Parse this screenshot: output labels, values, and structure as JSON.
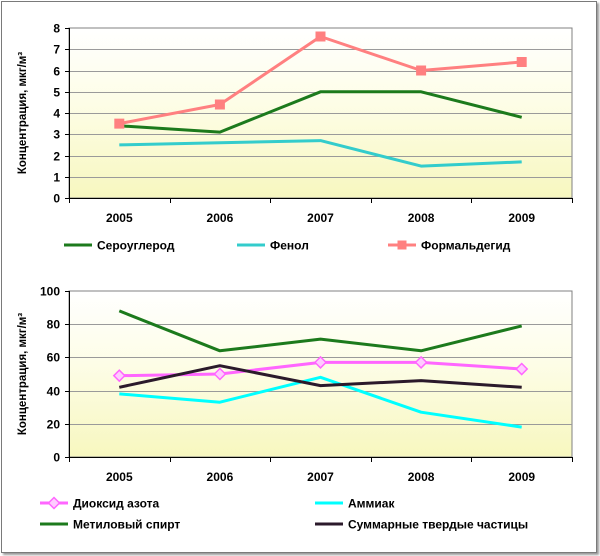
{
  "chart_data": [
    {
      "type": "line",
      "ylabel": "Концентрация, мкг/м³",
      "xlabel": "",
      "categories": [
        "2005",
        "2006",
        "2007",
        "2008",
        "2009"
      ],
      "ylim": [
        0,
        8
      ],
      "yticks": [
        "0",
        "1",
        "2",
        "3",
        "4",
        "5",
        "6",
        "7",
        "8"
      ],
      "grid": "horizontal",
      "legend": "bottom",
      "series": [
        {
          "name": "Сероуглерод",
          "values": [
            3.4,
            3.1,
            5.0,
            5.0,
            3.8
          ],
          "color": "#1c7a1c",
          "marker": "none"
        },
        {
          "name": "Фенол",
          "values": [
            2.5,
            2.6,
            2.7,
            1.5,
            1.7
          ],
          "color": "#33cccc",
          "marker": "none"
        },
        {
          "name": "Формальдегид",
          "values": [
            3.5,
            4.4,
            7.6,
            6.0,
            6.4
          ],
          "color": "#ff8080",
          "marker": "square"
        }
      ]
    },
    {
      "type": "line",
      "ylabel": "Концентрация, мкг/м³",
      "xlabel": "",
      "categories": [
        "2005",
        "2006",
        "2007",
        "2008",
        "2009"
      ],
      "ylim": [
        0,
        100
      ],
      "yticks": [
        "0",
        "20",
        "40",
        "60",
        "80",
        "100"
      ],
      "grid": "horizontal",
      "legend": "bottom",
      "series": [
        {
          "name": "Диоксид азота",
          "values": [
            49,
            50,
            57,
            57,
            53
          ],
          "color": "#ff66ff",
          "marker": "diamond"
        },
        {
          "name": "Аммиак",
          "values": [
            38,
            33,
            48,
            27,
            18
          ],
          "color": "#00ffff",
          "marker": "none"
        },
        {
          "name": "Метиловый спирт",
          "values": [
            88,
            64,
            71,
            64,
            79
          ],
          "color": "#1c7a1c",
          "marker": "none"
        },
        {
          "name": "Суммарные твердые частицы",
          "values": [
            42,
            55,
            43,
            46,
            42
          ],
          "color": "#2b1a2b",
          "marker": "none"
        }
      ]
    }
  ]
}
